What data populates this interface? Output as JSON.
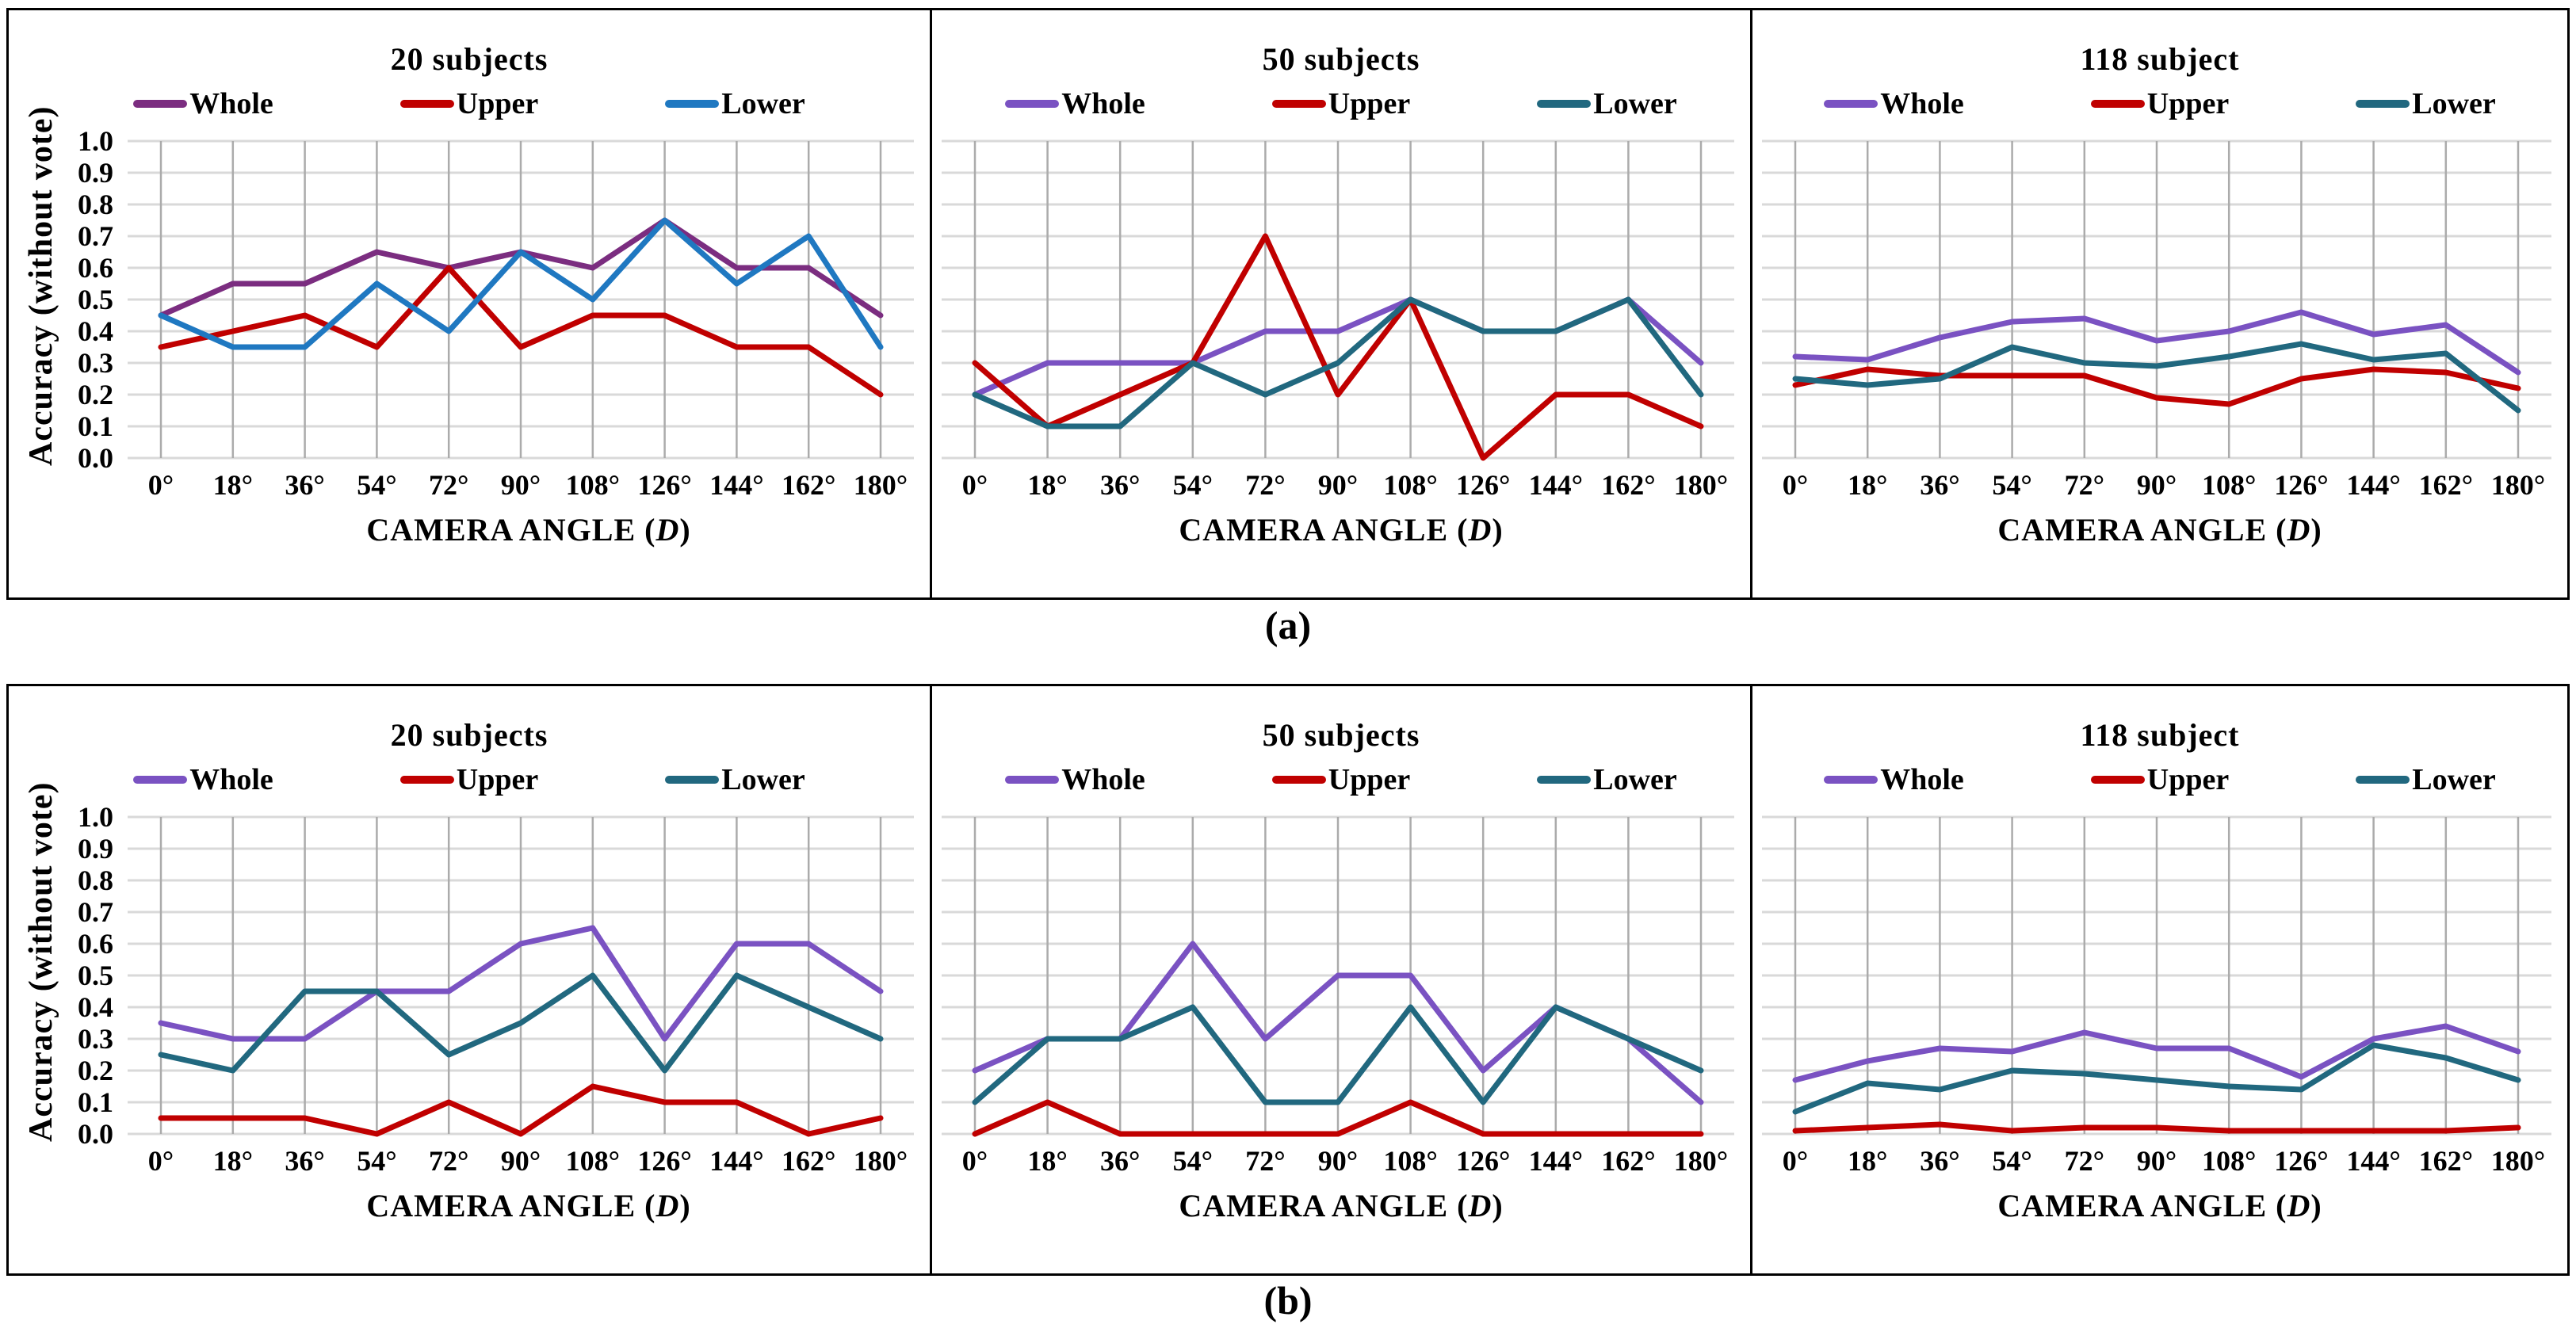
{
  "captions": {
    "a": "(a)",
    "b": "(b)"
  },
  "y_axis": {
    "label": "Accuracy (without vote)",
    "ticks": [
      "1.0",
      "0.9",
      "0.8",
      "0.7",
      "0.6",
      "0.5",
      "0.4",
      "0.3",
      "0.2",
      "0.1",
      "0.0"
    ]
  },
  "x_axis": {
    "prefix": "CAMERA ANGLE (",
    "variable": "D",
    "suffix": ")",
    "categories": [
      "0°",
      "18°",
      "36°",
      "54°",
      "72°",
      "90°",
      "108°",
      "126°",
      "144°",
      "162°",
      "180°"
    ]
  },
  "chart_data": [
    {
      "type": "line",
      "panel": "a",
      "title": "20 subjects",
      "xlabel": "CAMERA ANGLE (D)",
      "ylabel": "Accuracy (without vote)",
      "ylim": [
        0.0,
        1.0
      ],
      "grid": true,
      "legend_position": "top",
      "categories": [
        "0°",
        "18°",
        "36°",
        "54°",
        "72°",
        "90°",
        "108°",
        "126°",
        "144°",
        "162°",
        "180°"
      ],
      "series": [
        {
          "name": "Whole",
          "color": "#7B2D80",
          "values": [
            0.45,
            0.55,
            0.55,
            0.65,
            0.6,
            0.65,
            0.6,
            0.75,
            0.6,
            0.6,
            0.45
          ]
        },
        {
          "name": "Upper",
          "color": "#C00000",
          "values": [
            0.35,
            0.4,
            0.45,
            0.35,
            0.6,
            0.35,
            0.45,
            0.45,
            0.35,
            0.35,
            0.2
          ]
        },
        {
          "name": "Lower",
          "color": "#1F78C1",
          "values": [
            0.45,
            0.35,
            0.35,
            0.55,
            0.4,
            0.65,
            0.5,
            0.75,
            0.55,
            0.7,
            0.35
          ]
        }
      ]
    },
    {
      "type": "line",
      "panel": "a",
      "title": "50 subjects",
      "xlabel": "CAMERA ANGLE (D)",
      "ylabel": "Accuracy (without vote)",
      "ylim": [
        0.0,
        1.0
      ],
      "grid": true,
      "legend_position": "top",
      "categories": [
        "0°",
        "18°",
        "36°",
        "54°",
        "72°",
        "90°",
        "108°",
        "126°",
        "144°",
        "162°",
        "180°"
      ],
      "series": [
        {
          "name": "Whole",
          "color": "#7A52C2",
          "values": [
            0.2,
            0.3,
            0.3,
            0.3,
            0.4,
            0.4,
            0.5,
            0.4,
            0.4,
            0.5,
            0.3
          ]
        },
        {
          "name": "Upper",
          "color": "#C00000",
          "values": [
            0.3,
            0.1,
            0.2,
            0.3,
            0.7,
            0.2,
            0.5,
            0.0,
            0.2,
            0.2,
            0.1
          ]
        },
        {
          "name": "Lower",
          "color": "#21687F",
          "values": [
            0.2,
            0.1,
            0.1,
            0.3,
            0.2,
            0.3,
            0.5,
            0.4,
            0.4,
            0.5,
            0.2
          ]
        }
      ]
    },
    {
      "type": "line",
      "panel": "a",
      "title": "118 subject",
      "xlabel": "CAMERA ANGLE (D)",
      "ylabel": "Accuracy (without vote)",
      "ylim": [
        0.0,
        1.0
      ],
      "grid": true,
      "legend_position": "top",
      "categories": [
        "0°",
        "18°",
        "36°",
        "54°",
        "72°",
        "90°",
        "108°",
        "126°",
        "144°",
        "162°",
        "180°"
      ],
      "series": [
        {
          "name": "Whole",
          "color": "#7A52C2",
          "values": [
            0.32,
            0.31,
            0.38,
            0.43,
            0.44,
            0.37,
            0.4,
            0.46,
            0.39,
            0.42,
            0.27
          ]
        },
        {
          "name": "Upper",
          "color": "#C00000",
          "values": [
            0.23,
            0.28,
            0.26,
            0.26,
            0.26,
            0.19,
            0.17,
            0.25,
            0.28,
            0.27,
            0.22
          ]
        },
        {
          "name": "Lower",
          "color": "#21687F",
          "values": [
            0.25,
            0.23,
            0.25,
            0.35,
            0.3,
            0.29,
            0.32,
            0.36,
            0.31,
            0.33,
            0.15
          ]
        }
      ]
    },
    {
      "type": "line",
      "panel": "b",
      "title": "20 subjects",
      "xlabel": "CAMERA ANGLE (D)",
      "ylabel": "Accuracy (without vote)",
      "ylim": [
        0.0,
        1.0
      ],
      "grid": true,
      "legend_position": "top",
      "categories": [
        "0°",
        "18°",
        "36°",
        "54°",
        "72°",
        "90°",
        "108°",
        "126°",
        "144°",
        "162°",
        "180°"
      ],
      "series": [
        {
          "name": "Whole",
          "color": "#7A52C2",
          "values": [
            0.35,
            0.3,
            0.3,
            0.45,
            0.45,
            0.6,
            0.65,
            0.3,
            0.6,
            0.6,
            0.45
          ]
        },
        {
          "name": "Upper",
          "color": "#C00000",
          "values": [
            0.05,
            0.05,
            0.05,
            0.0,
            0.1,
            0.0,
            0.15,
            0.1,
            0.1,
            0.0,
            0.05
          ]
        },
        {
          "name": "Lower",
          "color": "#21687F",
          "values": [
            0.25,
            0.2,
            0.45,
            0.45,
            0.25,
            0.35,
            0.5,
            0.2,
            0.5,
            0.4,
            0.3
          ]
        }
      ]
    },
    {
      "type": "line",
      "panel": "b",
      "title": "50 subjects",
      "xlabel": "CAMERA ANGLE (D)",
      "ylabel": "Accuracy (without vote)",
      "ylim": [
        0.0,
        1.0
      ],
      "grid": true,
      "legend_position": "top",
      "categories": [
        "0°",
        "18°",
        "36°",
        "54°",
        "72°",
        "90°",
        "108°",
        "126°",
        "144°",
        "162°",
        "180°"
      ],
      "series": [
        {
          "name": "Whole",
          "color": "#7A52C2",
          "values": [
            0.2,
            0.3,
            0.3,
            0.6,
            0.3,
            0.5,
            0.5,
            0.2,
            0.4,
            0.3,
            0.1
          ]
        },
        {
          "name": "Upper",
          "color": "#C00000",
          "values": [
            0.0,
            0.1,
            0.0,
            0.0,
            0.0,
            0.0,
            0.1,
            0.0,
            0.0,
            0.0,
            0.0
          ]
        },
        {
          "name": "Lower",
          "color": "#21687F",
          "values": [
            0.1,
            0.3,
            0.3,
            0.4,
            0.1,
            0.1,
            0.4,
            0.1,
            0.4,
            0.3,
            0.2
          ]
        }
      ]
    },
    {
      "type": "line",
      "panel": "b",
      "title": "118 subject",
      "xlabel": "CAMERA ANGLE (D)",
      "ylabel": "Accuracy (without vote)",
      "ylim": [
        0.0,
        1.0
      ],
      "grid": true,
      "legend_position": "top",
      "categories": [
        "0°",
        "18°",
        "36°",
        "54°",
        "72°",
        "90°",
        "108°",
        "126°",
        "144°",
        "162°",
        "180°"
      ],
      "series": [
        {
          "name": "Whole",
          "color": "#7A52C2",
          "values": [
            0.17,
            0.23,
            0.27,
            0.26,
            0.32,
            0.27,
            0.27,
            0.18,
            0.3,
            0.34,
            0.26
          ]
        },
        {
          "name": "Upper",
          "color": "#C00000",
          "values": [
            0.01,
            0.02,
            0.03,
            0.01,
            0.02,
            0.02,
            0.01,
            0.01,
            0.01,
            0.01,
            0.02
          ]
        },
        {
          "name": "Lower",
          "color": "#21687F",
          "values": [
            0.07,
            0.16,
            0.14,
            0.2,
            0.19,
            0.17,
            0.15,
            0.14,
            0.28,
            0.24,
            0.17
          ]
        }
      ]
    }
  ]
}
